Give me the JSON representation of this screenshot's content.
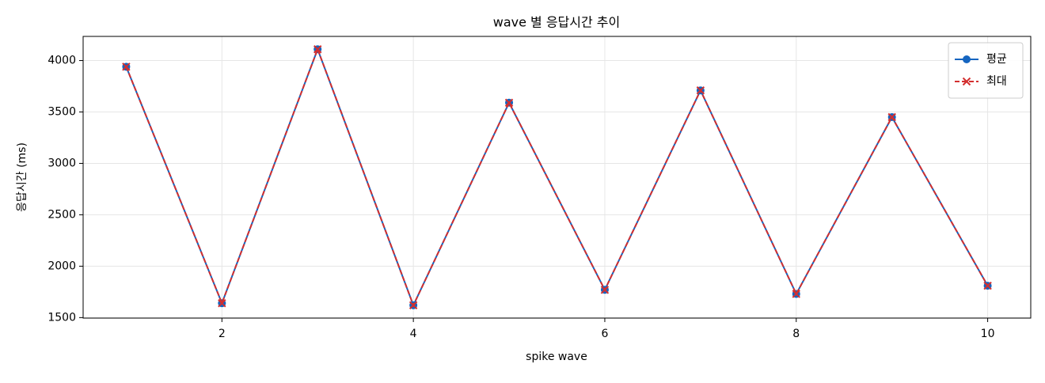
{
  "chart_data": {
    "type": "line",
    "title": "wave 별 응답시간 추이",
    "x_label": "spike wave",
    "y_label": "응답시간 (ms)",
    "x": [
      1,
      2,
      3,
      4,
      5,
      6,
      7,
      8,
      9,
      10
    ],
    "series": [
      {
        "name": "평균",
        "color": "#1565c0",
        "marker": "circle",
        "dash": false,
        "values": [
          3940,
          1640,
          4110,
          1620,
          3590,
          1770,
          3710,
          1730,
          3450,
          1810
        ]
      },
      {
        "name": "최대",
        "color": "#d32f2f",
        "marker": "x",
        "dash": true,
        "values": [
          3940,
          1640,
          4110,
          1620,
          3590,
          1770,
          3710,
          1730,
          3450,
          1810
        ]
      }
    ],
    "xlim": [
      0.55,
      10.45
    ],
    "xticks": [
      2,
      4,
      6,
      8,
      10
    ],
    "ylim": [
      1495,
      4235
    ],
    "yticks": [
      1500,
      2000,
      2500,
      3000,
      3500,
      4000
    ],
    "grid": true,
    "legend": "upper-right"
  }
}
